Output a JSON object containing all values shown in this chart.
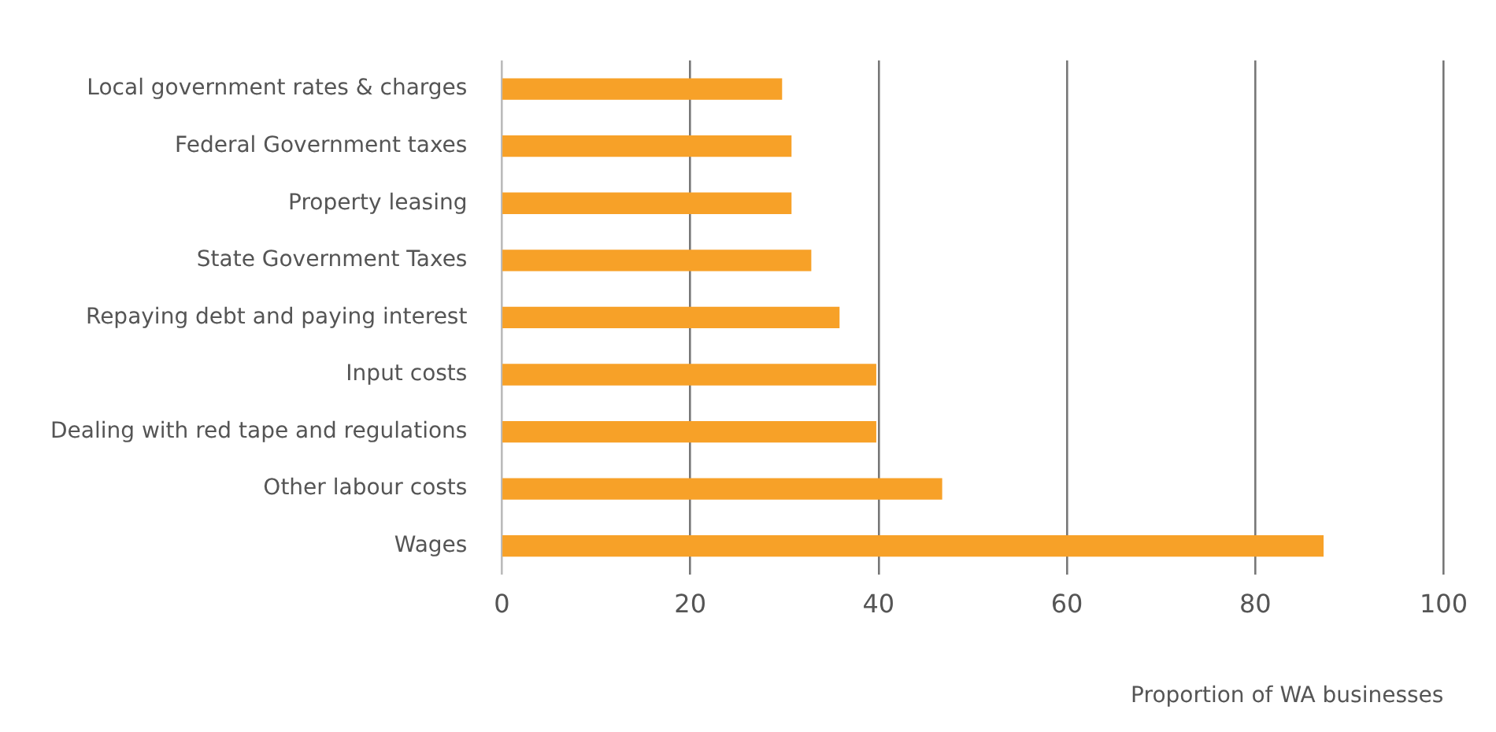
{
  "chart_data": {
    "type": "bar",
    "orientation": "horizontal",
    "xlabel": "Proportion of WA businesses",
    "categories": [
      "Local government rates & charges",
      "Federal Government taxes",
      "Property leasing",
      "State Government Taxes",
      "Repaying debt and paying interest",
      "Input costs",
      "Dealing with red tape and regulations",
      "Other labour costs",
      "Wages"
    ],
    "values": [
      29.7,
      30.7,
      30.7,
      32.8,
      35.8,
      39.7,
      39.7,
      46.7,
      87.2
    ],
    "color": "#f7a128",
    "xlim": [
      0,
      100
    ],
    "xticks": [
      0,
      20,
      40,
      60,
      80,
      100
    ],
    "grid": "x",
    "legend": false
  }
}
